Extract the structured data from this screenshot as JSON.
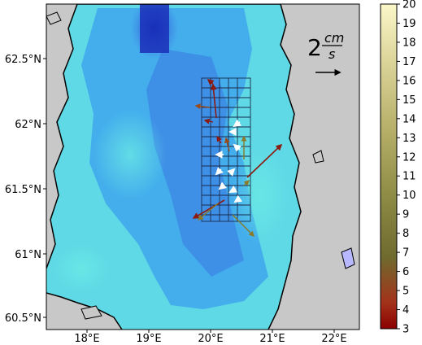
{
  "map": {
    "lat_ticks": [
      "62.5°N",
      "62°N",
      "61.5°N",
      "61°N",
      "60.5°N"
    ],
    "lon_ticks": [
      "18°E",
      "19°E",
      "20°E",
      "21°E",
      "22°E"
    ],
    "scale_value": "2",
    "scale_unit_top": "cm",
    "scale_unit_bottom": "s"
  },
  "colorbar": {
    "ticks": [
      "20",
      "19",
      "18",
      "17",
      "16",
      "15",
      "14",
      "13",
      "12",
      "11",
      "10",
      "9",
      "8",
      "7",
      "6",
      "5",
      "4",
      "3"
    ],
    "colors": {
      "top": "#fbf7c8",
      "mid": "#c2b874",
      "low": "#7a7a34",
      "bottom": "#8b0000"
    }
  },
  "colors": {
    "land": "#c8c8c8",
    "sea_light": "#5fe7e0",
    "sea_mid": "#3e8fe8",
    "sea_deep": "#1a2fb8",
    "grid": "#1a2a4a"
  }
}
